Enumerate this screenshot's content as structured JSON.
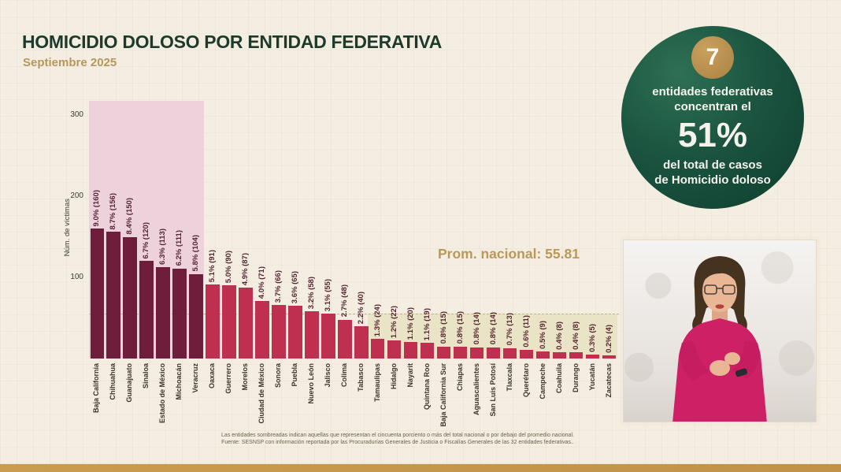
{
  "header": {
    "title": "HOMICIDIO DOLOSO POR ENTIDAD FEDERATIVA",
    "subtitle": "Septiembre 2025"
  },
  "chart_data": {
    "type": "bar",
    "ylabel": "Núm. de víctimas",
    "yticks": [
      100,
      200,
      300
    ],
    "ylim": [
      0,
      320
    ],
    "categories": [
      "Baja California",
      "Chihuahua",
      "Guanajuato",
      "Sinaloa",
      "Estado de México",
      "Michoacán",
      "Veracruz",
      "Oaxaca",
      "Guerrero",
      "Morelos",
      "Ciudad de México",
      "Sonora",
      "Puebla",
      "Nuevo León",
      "Jalisco",
      "Colima",
      "Tabasco",
      "Tamaulipas",
      "Hidalgo",
      "Nayarit",
      "Quintana Roo",
      "Baja California Sur",
      "Chiapas",
      "Aguascalientes",
      "San Luis Potosí",
      "Tlaxcala",
      "Querétaro",
      "Campeche",
      "Coahuila",
      "Durango",
      "Yucatán",
      "Zacatecas"
    ],
    "values": [
      160,
      156,
      150,
      120,
      113,
      111,
      104,
      91,
      90,
      87,
      71,
      66,
      65,
      58,
      55,
      48,
      40,
      24,
      22,
      20,
      19,
      15,
      15,
      14,
      14,
      13,
      11,
      9,
      8,
      8,
      5,
      4
    ],
    "labels": [
      "9.0% (160)",
      "8.7% (156)",
      "8.4% (150)",
      "6.7% (120)",
      "6.3% (113)",
      "6.2% (111)",
      "5.8% (104)",
      "5.1% (91)",
      "5.0% (90)",
      "4.9% (87)",
      "4.0% (71)",
      "3.7% (66)",
      "3.6% (65)",
      "3.2% (58)",
      "3.1% (55)",
      "2.7% (48)",
      "2.2% (40)",
      "1.3% (24)",
      "1.2% (22)",
      "1.1% (20)",
      "1.1% (19)",
      "0.8% (15)",
      "0.8% (15)",
      "0.8% (14)",
      "0.8% (14)",
      "0.7% (13)",
      "0.6% (11)",
      "0.5% (9)",
      "0.4% (8)",
      "0.4% (8)",
      "0.3% (5)",
      "0.2% (4)"
    ],
    "highlight_top_group": {
      "count": 7,
      "note": "concentran el 51%"
    },
    "national_average": {
      "label": "Prom. nacional: 55.81",
      "value": 55.81
    },
    "shaded_below_average_from_index": 17,
    "grid": "off",
    "legend": "none"
  },
  "badge": {
    "count": "7",
    "line1": "entidades federativas",
    "line2": "concentran el",
    "percent": "51%",
    "line3": "del total de casos",
    "line4": "de Homicidio doloso"
  },
  "footer": {
    "line1": "Las entidades sombreadas indican aquellas que representan el cincuenta porciento o más del total nacional o por debajo del promedio nacional.",
    "line2": "Fuente: SESNSP con información reportada por las Procuradurías Generales de Justicia o Fiscalías Generales de las 32 entidades federativas.."
  },
  "colors": {
    "bar_dark": "#6e1d3b",
    "bar_red": "#bf3050",
    "band_pink": "#edd2db",
    "band_khaki": "#eae4c7",
    "gold": "#bb9858",
    "dark_green": "#1d3a2b",
    "magenta": "#ce2065"
  }
}
